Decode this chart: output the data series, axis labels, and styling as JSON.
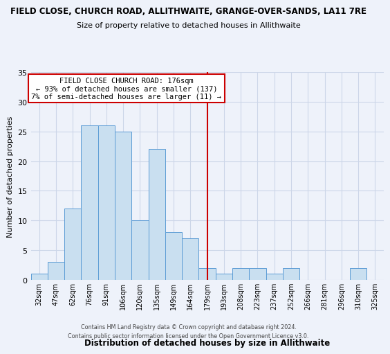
{
  "title": "FIELD CLOSE, CHURCH ROAD, ALLITHWAITE, GRANGE-OVER-SANDS, LA11 7RE",
  "subtitle": "Size of property relative to detached houses in Allithwaite",
  "xlabel": "Distribution of detached houses by size in Allithwaite",
  "ylabel": "Number of detached properties",
  "bar_labels": [
    "32sqm",
    "47sqm",
    "62sqm",
    "76sqm",
    "91sqm",
    "106sqm",
    "120sqm",
    "135sqm",
    "149sqm",
    "164sqm",
    "179sqm",
    "193sqm",
    "208sqm",
    "223sqm",
    "237sqm",
    "252sqm",
    "266sqm",
    "281sqm",
    "296sqm",
    "310sqm",
    "325sqm"
  ],
  "bar_values": [
    1,
    3,
    12,
    26,
    26,
    25,
    10,
    22,
    8,
    7,
    2,
    1,
    2,
    2,
    1,
    2,
    0,
    0,
    0,
    2,
    0
  ],
  "bar_color": "#c9dff0",
  "bar_edge_color": "#5b9bd5",
  "vline_index": 10,
  "vline_color": "#cc0000",
  "ylim": [
    0,
    35
  ],
  "yticks": [
    0,
    5,
    10,
    15,
    20,
    25,
    30,
    35
  ],
  "annotation_title": "FIELD CLOSE CHURCH ROAD: 176sqm",
  "annotation_line1": "← 93% of detached houses are smaller (137)",
  "annotation_line2": "7% of semi-detached houses are larger (11) →",
  "annotation_box_color": "#cc0000",
  "grid_color": "#ccd6e8",
  "background_color": "#eef2fa",
  "footer_line1": "Contains HM Land Registry data © Crown copyright and database right 2024.",
  "footer_line2": "Contains public sector information licensed under the Open Government Licence v3.0."
}
